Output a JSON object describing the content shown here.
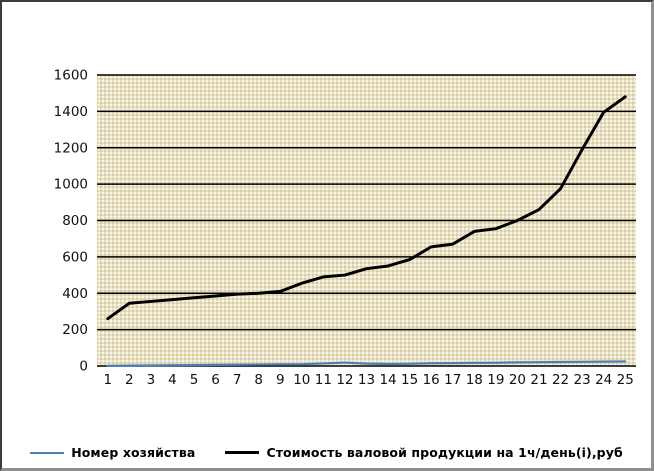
{
  "chart_data": {
    "type": "line",
    "title": "",
    "xlabel": "",
    "ylabel": "",
    "categories": [
      1,
      2,
      3,
      4,
      5,
      6,
      7,
      8,
      9,
      10,
      11,
      12,
      13,
      14,
      15,
      16,
      17,
      18,
      19,
      20,
      21,
      22,
      23,
      24,
      25
    ],
    "series": [
      {
        "name": "Номер хозяйства",
        "color": "#4a7ebb",
        "stroke_width": 2.2,
        "values": [
          1,
          2,
          3,
          4,
          5,
          6,
          7,
          8,
          9,
          10,
          14,
          19,
          13,
          11,
          12,
          15,
          16,
          17,
          18,
          20,
          21,
          22,
          23,
          24,
          25
        ]
      },
      {
        "name": "Стоимость валовой продукции на 1ч/день(i),руб",
        "color": "#000000",
        "stroke_width": 3,
        "values": [
          260,
          345,
          355,
          365,
          375,
          385,
          395,
          400,
          410,
          455,
          490,
          500,
          535,
          550,
          585,
          655,
          670,
          740,
          755,
          800,
          860,
          975,
          1190,
          1395,
          1480
        ]
      }
    ],
    "ylim": [
      0,
      1600
    ],
    "y_ticks": [
      0,
      200,
      400,
      600,
      800,
      1000,
      1200,
      1400,
      1600
    ],
    "grid": true,
    "grid_color": "#000000",
    "plot_bg": "#e9e1c6",
    "axis_label_color": "#111111",
    "legend_position": "bottom"
  }
}
